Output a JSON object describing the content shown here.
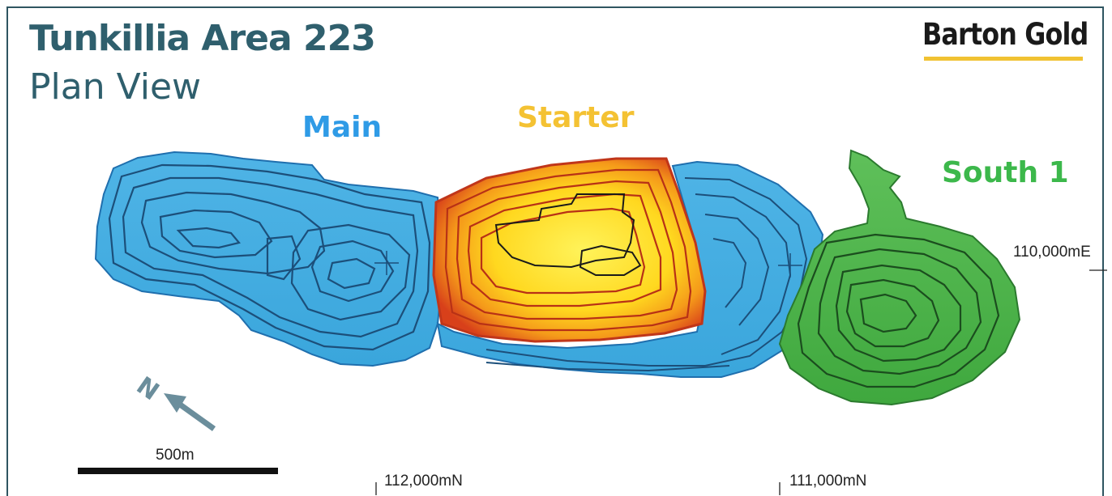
{
  "title": "Tunkillia Area 223",
  "subtitle": "Plan View",
  "logo": {
    "text": "Barton Gold",
    "bar_color": "#f1c232"
  },
  "pits": [
    {
      "label": "Main",
      "color": "#2f9be6"
    },
    {
      "label": "Starter",
      "color": "#f4c233"
    },
    {
      "label": "South 1",
      "color": "#3cb84b"
    }
  ],
  "grid_labels": {
    "easting": "110,000mE",
    "northing_1": "112,000mN",
    "northing_2": "111,000mN"
  },
  "north_arrow": {
    "letter": "N",
    "icon": "north-arrow-icon"
  },
  "scale_bar": {
    "label": "500m"
  }
}
